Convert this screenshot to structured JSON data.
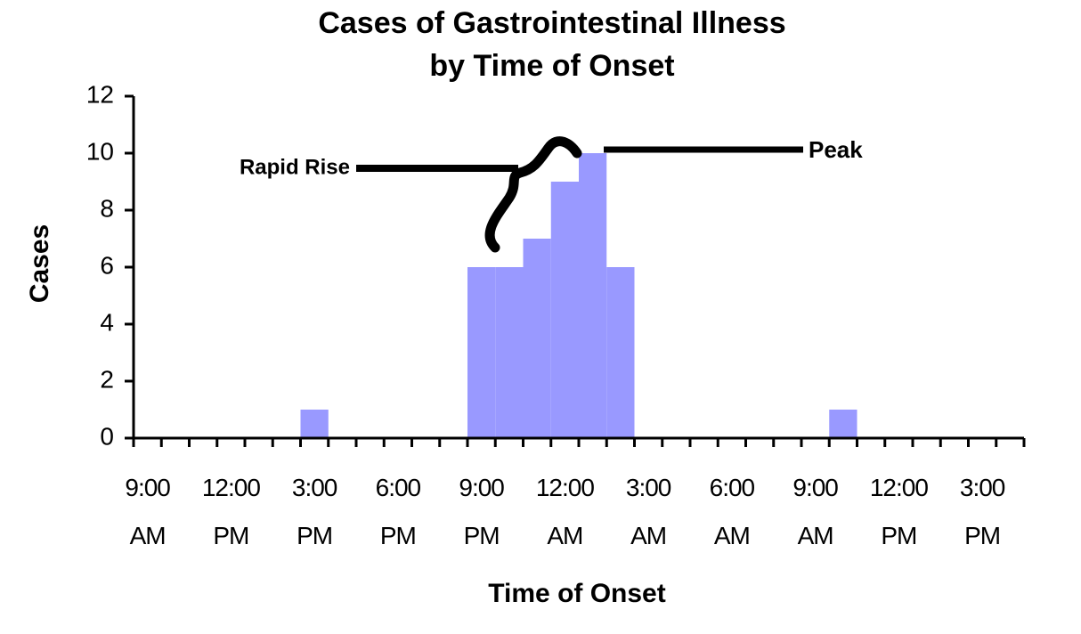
{
  "chart_data": {
    "type": "bar",
    "title": [
      "Cases of Gastrointestinal Illness",
      "by Time of Onset"
    ],
    "x_label": "Time of Onset",
    "y_label": "Cases",
    "categories": [
      "9:00 AM",
      null,
      null,
      "12:00 PM",
      null,
      null,
      "3:00 PM",
      null,
      null,
      "6:00 PM",
      null,
      null,
      "9:00 PM",
      null,
      null,
      "12:00 AM",
      null,
      null,
      "3:00 AM",
      null,
      null,
      "6:00 AM",
      null,
      null,
      "9:00 AM",
      null,
      null,
      "12:00 PM",
      null,
      null,
      "3:00 PM",
      null
    ],
    "values": [
      0,
      0,
      0,
      0,
      0,
      0,
      1,
      0,
      0,
      0,
      0,
      0,
      6,
      6,
      7,
      9,
      10,
      6,
      0,
      0,
      0,
      0,
      0,
      0,
      0,
      1,
      0,
      0,
      0,
      0,
      0,
      0
    ],
    "color": "#9999ff",
    "ylim": [
      0,
      12
    ],
    "yticks": [
      0,
      2,
      4,
      6,
      8,
      10,
      12
    ],
    "grid": false,
    "annotations": [
      "Rapid Rise",
      "Peak"
    ]
  }
}
